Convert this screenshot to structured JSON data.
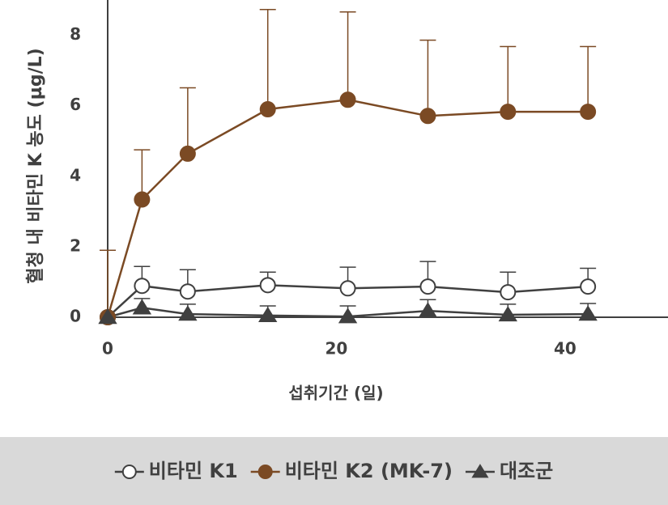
{
  "chart_data": {
    "type": "line",
    "y_label": "혈청 내 비타민 K 농도 (µg/L)",
    "x_label": "섭취기간 (일)",
    "xlim": [
      0,
      49
    ],
    "xticks": [
      0,
      20,
      40
    ],
    "ylim": [
      0,
      9
    ],
    "yticks": [
      0,
      2,
      4,
      6,
      8
    ],
    "grid": false,
    "legend": "bottom",
    "series": [
      {
        "name": "비타민 K1",
        "color": "#404040",
        "marker": "circle",
        "marker_fill": "#ffffff",
        "x": [
          0,
          3,
          7,
          14,
          21,
          28,
          35,
          42
        ],
        "values": [
          0,
          0.89,
          0.73,
          0.91,
          0.82,
          0.87,
          0.71,
          0.87
        ],
        "errors": [
          null,
          0.55,
          0.62,
          0.37,
          0.6,
          0.71,
          0.57,
          0.52
        ]
      },
      {
        "name": "비타민 K2 (MK-7)",
        "color": "#7b4a24",
        "marker": "circle",
        "marker_fill": "#7b4a24",
        "x": [
          0,
          3,
          7,
          14,
          21,
          28,
          35,
          42
        ],
        "values": [
          0,
          3.34,
          4.64,
          5.9,
          6.17,
          5.71,
          5.83,
          5.83
        ],
        "errors": [
          1.9,
          1.41,
          1.87,
          2.83,
          2.49,
          2.15,
          1.85,
          1.85
        ]
      },
      {
        "name": "대조군",
        "color": "#404040",
        "marker": "triangle",
        "marker_fill": "#404040",
        "x": [
          0,
          3,
          7,
          14,
          21,
          28,
          35,
          42
        ],
        "values": [
          0,
          0.27,
          0.09,
          0.05,
          0.02,
          0.18,
          0.07,
          0.09
        ],
        "errors": [
          null,
          0.26,
          0.28,
          0.27,
          0.3,
          0.32,
          0.3,
          0.3
        ]
      }
    ]
  }
}
